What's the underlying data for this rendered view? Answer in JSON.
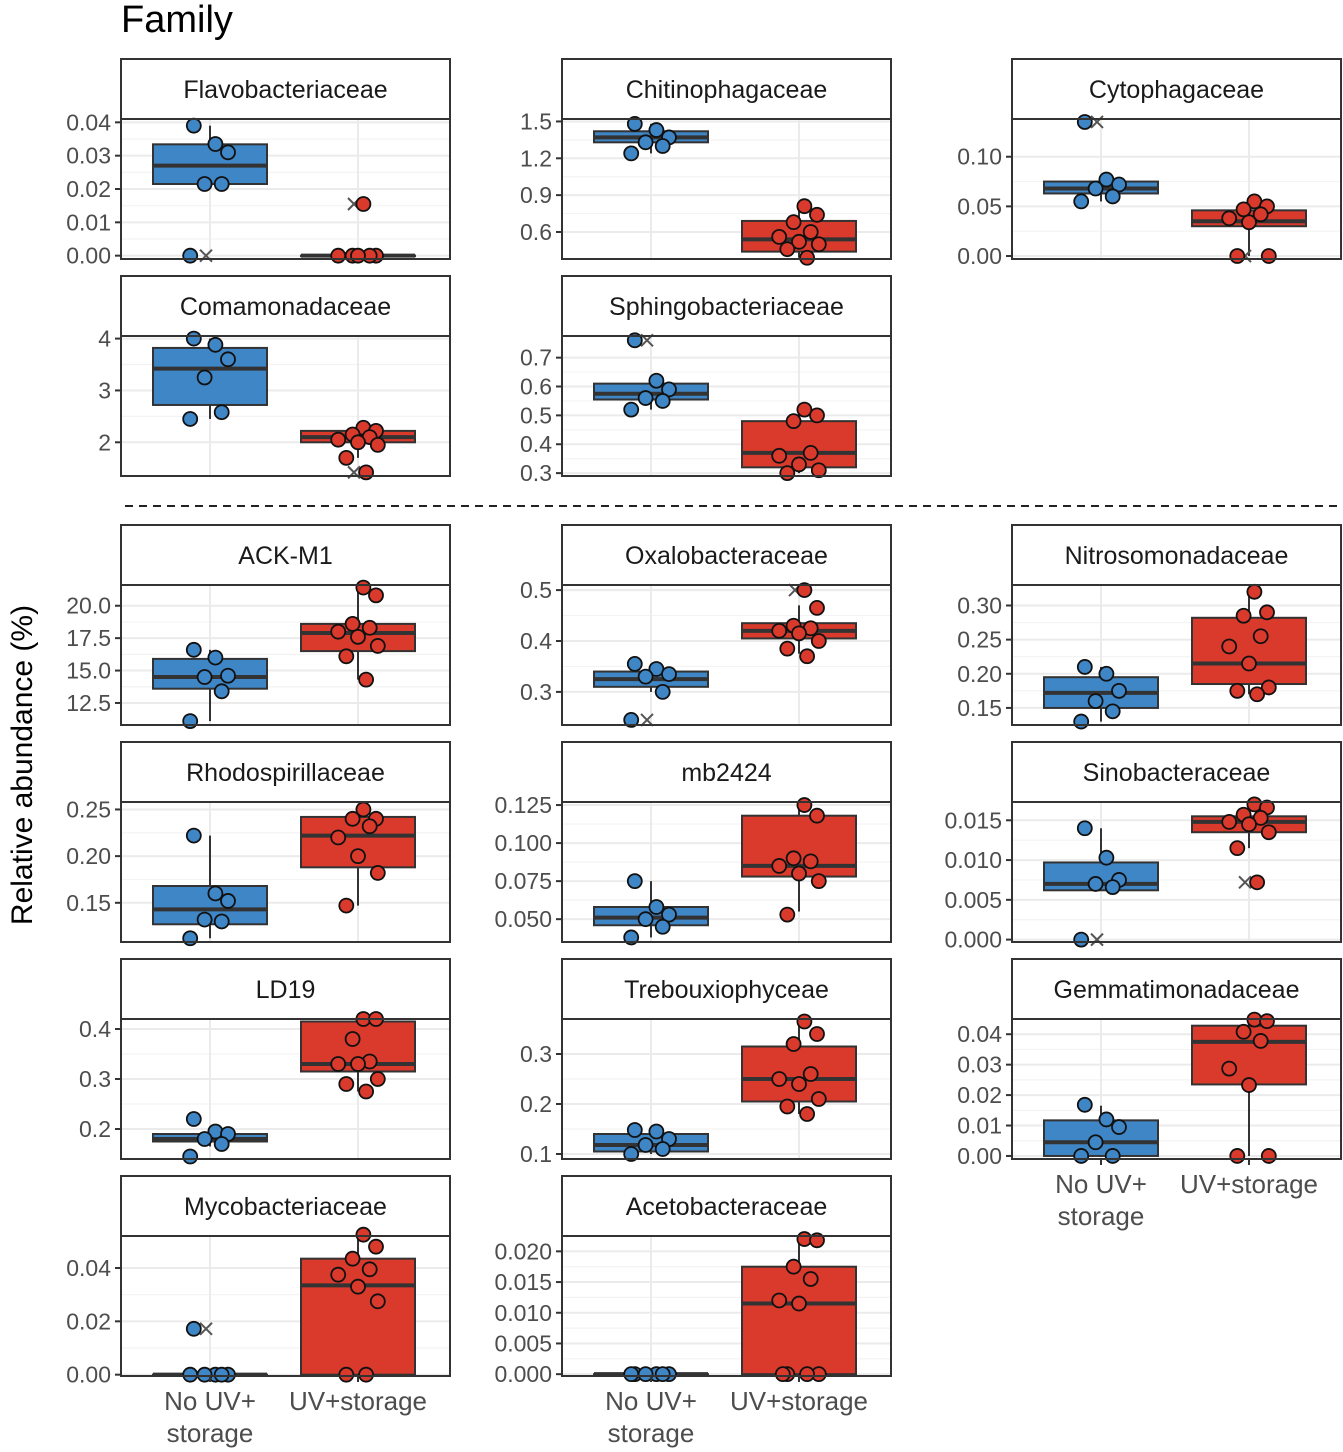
{
  "title": "Family",
  "ylabel": "Relative abundance (%)",
  "categories": [
    "No UV+\nstorage",
    "UV+storage"
  ],
  "colors": {
    "no_uv": "#3f86c6",
    "uv": "#d93a2c",
    "strip_bg": "#ffffff",
    "panel_border": "#333333",
    "grid": "#ebebeb",
    "median": "#333333"
  },
  "chart_data": [
    {
      "type": "box",
      "title": "Flavobacteriaceae",
      "ylim": [
        -0.001,
        0.041
      ],
      "yticks": [
        0,
        0.01,
        0.02,
        0.03,
        0.04
      ],
      "ytick_labels": [
        "0.00",
        "0.01",
        "0.02",
        "0.03",
        "0.04"
      ],
      "groups": [
        {
          "name": "No UV+ storage",
          "box": {
            "q1": 0.0215,
            "median": 0.027,
            "q3": 0.0334,
            "whisker_low": 0.0215,
            "whisker_high": 0.039
          },
          "points": [
            0.039,
            0.0335,
            0.031,
            0.0215,
            0.0215,
            0.0
          ],
          "outliers": [
            0.0
          ]
        },
        {
          "name": "UV+storage",
          "box": {
            "q1": 0.0,
            "median": 0.0,
            "q3": 0.0,
            "whisker_low": 0.0,
            "whisker_high": 0.0
          },
          "points": [
            0.0155,
            0.0,
            0.0,
            0.0,
            0.0,
            0.0
          ],
          "outliers": [
            0.0155
          ]
        }
      ]
    },
    {
      "type": "box",
      "title": "Chitinophagaceae",
      "ylim": [
        0.38,
        1.52
      ],
      "yticks": [
        0.6,
        0.9,
        1.2,
        1.5
      ],
      "ytick_labels": [
        "0.6",
        "0.9",
        "1.2",
        "1.5"
      ],
      "groups": [
        {
          "name": "No UV+ storage",
          "box": {
            "q1": 1.33,
            "median": 1.37,
            "q3": 1.42,
            "whisker_low": 1.24,
            "whisker_high": 1.48
          },
          "points": [
            1.48,
            1.43,
            1.37,
            1.33,
            1.3,
            1.24
          ],
          "outliers": []
        },
        {
          "name": "UV+storage",
          "box": {
            "q1": 0.44,
            "median": 0.54,
            "q3": 0.69,
            "whisker_low": 0.39,
            "whisker_high": 0.81
          },
          "points": [
            0.81,
            0.74,
            0.68,
            0.6,
            0.56,
            0.52,
            0.5,
            0.46,
            0.39
          ],
          "outliers": []
        }
      ]
    },
    {
      "type": "box",
      "title": "Cytophagaceae",
      "ylim": [
        -0.003,
        0.138
      ],
      "yticks": [
        0,
        0.05,
        0.1
      ],
      "ytick_labels": [
        "0.00",
        "0.05",
        "0.10"
      ],
      "groups": [
        {
          "name": "No UV+ storage",
          "box": {
            "q1": 0.063,
            "median": 0.068,
            "q3": 0.075,
            "whisker_low": 0.055,
            "whisker_high": 0.077
          },
          "points": [
            0.135,
            0.077,
            0.072,
            0.068,
            0.06,
            0.055
          ],
          "outliers": [
            0.135
          ]
        },
        {
          "name": "UV+storage",
          "box": {
            "q1": 0.03,
            "median": 0.035,
            "q3": 0.046,
            "whisker_low": 0.0,
            "whisker_high": 0.055
          },
          "points": [
            0.055,
            0.05,
            0.047,
            0.042,
            0.038,
            0.034,
            0.0,
            0.0
          ],
          "outliers": [
            0.0
          ]
        }
      ]
    },
    {
      "type": "box",
      "title": "Comamonadaceae",
      "ylim": [
        1.35,
        4.05
      ],
      "yticks": [
        2,
        3,
        4
      ],
      "ytick_labels": [
        "2",
        "3",
        "4"
      ],
      "groups": [
        {
          "name": "No UV+ storage",
          "box": {
            "q1": 2.72,
            "median": 3.42,
            "q3": 3.82,
            "whisker_low": 2.45,
            "whisker_high": 4.0
          },
          "points": [
            4.0,
            3.88,
            3.6,
            3.25,
            2.58,
            2.45
          ],
          "outliers": []
        },
        {
          "name": "UV+storage",
          "box": {
            "q1": 2.0,
            "median": 2.1,
            "q3": 2.22,
            "whisker_low": 1.7,
            "whisker_high": 2.28
          },
          "points": [
            2.28,
            2.22,
            2.15,
            2.1,
            2.05,
            2.0,
            1.95,
            1.7,
            1.42
          ],
          "outliers": [
            1.42
          ]
        }
      ]
    },
    {
      "type": "box",
      "title": "Sphingobacteriaceae",
      "ylim": [
        0.29,
        0.775
      ],
      "yticks": [
        0.3,
        0.4,
        0.5,
        0.6,
        0.7
      ],
      "ytick_labels": [
        "0.3",
        "0.4",
        "0.5",
        "0.6",
        "0.7"
      ],
      "groups": [
        {
          "name": "No UV+ storage",
          "box": {
            "q1": 0.555,
            "median": 0.575,
            "q3": 0.61,
            "whisker_low": 0.52,
            "whisker_high": 0.62
          },
          "points": [
            0.76,
            0.62,
            0.59,
            0.56,
            0.55,
            0.52
          ],
          "outliers": [
            0.76
          ]
        },
        {
          "name": "UV+storage",
          "box": {
            "q1": 0.32,
            "median": 0.37,
            "q3": 0.48,
            "whisker_low": 0.3,
            "whisker_high": 0.52
          },
          "points": [
            0.52,
            0.5,
            0.48,
            0.37,
            0.36,
            0.33,
            0.31,
            0.3
          ],
          "outliers": []
        }
      ]
    },
    {
      "type": "box",
      "title": "ACK-M1",
      "ylim": [
        10.8,
        21.6
      ],
      "yticks": [
        12.5,
        15.0,
        17.5,
        20.0
      ],
      "ytick_labels": [
        "12.5",
        "15.0",
        "17.5",
        "20.0"
      ],
      "groups": [
        {
          "name": "No UV+ storage",
          "box": {
            "q1": 13.6,
            "median": 14.5,
            "q3": 15.9,
            "whisker_low": 11.1,
            "whisker_high": 16.6
          },
          "points": [
            16.6,
            16.0,
            14.6,
            14.5,
            13.4,
            11.1
          ],
          "outliers": []
        },
        {
          "name": "UV+storage",
          "box": {
            "q1": 16.5,
            "median": 17.9,
            "q3": 18.6,
            "whisker_low": 14.3,
            "whisker_high": 21.4
          },
          "points": [
            21.4,
            20.8,
            18.6,
            18.3,
            18.0,
            17.6,
            16.9,
            16.1,
            14.3
          ],
          "outliers": []
        }
      ]
    },
    {
      "type": "box",
      "title": "Oxalobacteraceae",
      "ylim": [
        0.235,
        0.51
      ],
      "yticks": [
        0.3,
        0.4,
        0.5
      ],
      "ytick_labels": [
        "0.3",
        "0.4",
        "0.5"
      ],
      "groups": [
        {
          "name": "No UV+ storage",
          "box": {
            "q1": 0.31,
            "median": 0.325,
            "q3": 0.34,
            "whisker_low": 0.3,
            "whisker_high": 0.355
          },
          "points": [
            0.355,
            0.345,
            0.335,
            0.33,
            0.3,
            0.245
          ],
          "outliers": [
            0.245
          ]
        },
        {
          "name": "UV+storage",
          "box": {
            "q1": 0.405,
            "median": 0.42,
            "q3": 0.435,
            "whisker_low": 0.375,
            "whisker_high": 0.47
          },
          "points": [
            0.5,
            0.465,
            0.43,
            0.425,
            0.42,
            0.415,
            0.4,
            0.385,
            0.37
          ],
          "outliers": [
            0.5
          ]
        }
      ]
    },
    {
      "type": "box",
      "title": "Nitrosomonadaceae",
      "ylim": [
        0.125,
        0.33
      ],
      "yticks": [
        0.15,
        0.2,
        0.25,
        0.3
      ],
      "ytick_labels": [
        "0.15",
        "0.20",
        "0.25",
        "0.30"
      ],
      "groups": [
        {
          "name": "No UV+ storage",
          "box": {
            "q1": 0.15,
            "median": 0.172,
            "q3": 0.195,
            "whisker_low": 0.13,
            "whisker_high": 0.21
          },
          "points": [
            0.21,
            0.2,
            0.175,
            0.16,
            0.145,
            0.13
          ],
          "outliers": []
        },
        {
          "name": "UV+storage",
          "box": {
            "q1": 0.185,
            "median": 0.215,
            "q3": 0.282,
            "whisker_low": 0.17,
            "whisker_high": 0.32
          },
          "points": [
            0.32,
            0.29,
            0.285,
            0.255,
            0.24,
            0.215,
            0.18,
            0.175,
            0.17
          ],
          "outliers": []
        }
      ]
    },
    {
      "type": "box",
      "title": "Rhodospirillaceae",
      "ylim": [
        0.108,
        0.258
      ],
      "yticks": [
        0.15,
        0.2,
        0.25
      ],
      "ytick_labels": [
        "0.15",
        "0.20",
        "0.25"
      ],
      "groups": [
        {
          "name": "No UV+ storage",
          "box": {
            "q1": 0.127,
            "median": 0.143,
            "q3": 0.168,
            "whisker_low": 0.112,
            "whisker_high": 0.222
          },
          "points": [
            0.222,
            0.16,
            0.152,
            0.132,
            0.13,
            0.112
          ],
          "outliers": []
        },
        {
          "name": "UV+storage",
          "box": {
            "q1": 0.188,
            "median": 0.222,
            "q3": 0.242,
            "whisker_low": 0.147,
            "whisker_high": 0.25
          },
          "points": [
            0.25,
            0.24,
            0.24,
            0.232,
            0.22,
            0.2,
            0.182,
            0.147
          ],
          "outliers": []
        }
      ]
    },
    {
      "type": "box",
      "title": "mb2424",
      "ylim": [
        0.035,
        0.127
      ],
      "yticks": [
        0.05,
        0.075,
        0.1,
        0.125
      ],
      "ytick_labels": [
        "0.050",
        "0.075",
        "0.100",
        "0.125"
      ],
      "groups": [
        {
          "name": "No UV+ storage",
          "box": {
            "q1": 0.046,
            "median": 0.051,
            "q3": 0.058,
            "whisker_low": 0.038,
            "whisker_high": 0.075
          },
          "points": [
            0.075,
            0.058,
            0.053,
            0.05,
            0.045,
            0.038
          ],
          "outliers": []
        },
        {
          "name": "UV+storage",
          "box": {
            "q1": 0.078,
            "median": 0.085,
            "q3": 0.118,
            "whisker_low": 0.055,
            "whisker_high": 0.125
          },
          "points": [
            0.125,
            0.118,
            0.09,
            0.088,
            0.085,
            0.08,
            0.075,
            0.053
          ],
          "outliers": []
        }
      ]
    },
    {
      "type": "box",
      "title": "Sinobacteraceae",
      "ylim": [
        -0.0003,
        0.0173
      ],
      "yticks": [
        0,
        0.005,
        0.01,
        0.015
      ],
      "ytick_labels": [
        "0.000",
        "0.005",
        "0.010",
        "0.015"
      ],
      "groups": [
        {
          "name": "No UV+ storage",
          "box": {
            "q1": 0.0062,
            "median": 0.007,
            "q3": 0.0097,
            "whisker_low": 0.0062,
            "whisker_high": 0.014
          },
          "points": [
            0.014,
            0.0103,
            0.0075,
            0.007,
            0.0066,
            0.0
          ],
          "outliers": [
            0.0
          ]
        },
        {
          "name": "UV+storage",
          "box": {
            "q1": 0.0135,
            "median": 0.0148,
            "q3": 0.0155,
            "whisker_low": 0.0115,
            "whisker_high": 0.017
          },
          "points": [
            0.017,
            0.0166,
            0.0157,
            0.0153,
            0.0148,
            0.0145,
            0.0135,
            0.0115,
            0.0072
          ],
          "outliers": [
            0.0072
          ]
        }
      ]
    },
    {
      "type": "box",
      "title": "LD19",
      "ylim": [
        0.14,
        0.42
      ],
      "yticks": [
        0.2,
        0.3,
        0.4
      ],
      "ytick_labels": [
        "0.2",
        "0.3",
        "0.4"
      ],
      "groups": [
        {
          "name": "No UV+ storage",
          "box": {
            "q1": 0.175,
            "median": 0.18,
            "q3": 0.19,
            "whisker_low": 0.165,
            "whisker_high": 0.205
          },
          "points": [
            0.22,
            0.195,
            0.19,
            0.18,
            0.17,
            0.145
          ],
          "outliers": []
        },
        {
          "name": "UV+storage",
          "box": {
            "q1": 0.315,
            "median": 0.33,
            "q3": 0.415,
            "whisker_low": 0.275,
            "whisker_high": 0.42
          },
          "points": [
            0.42,
            0.42,
            0.38,
            0.335,
            0.33,
            0.33,
            0.3,
            0.29,
            0.275
          ],
          "outliers": []
        }
      ]
    },
    {
      "type": "box",
      "title": "Trebouxiophyceae",
      "ylim": [
        0.09,
        0.37
      ],
      "yticks": [
        0.1,
        0.2,
        0.3
      ],
      "ytick_labels": [
        "0.1",
        "0.2",
        "0.3"
      ],
      "groups": [
        {
          "name": "No UV+ storage",
          "box": {
            "q1": 0.105,
            "median": 0.118,
            "q3": 0.14,
            "whisker_low": 0.1,
            "whisker_high": 0.15
          },
          "points": [
            0.148,
            0.145,
            0.13,
            0.118,
            0.11,
            0.1
          ],
          "outliers": []
        },
        {
          "name": "UV+storage",
          "box": {
            "q1": 0.205,
            "median": 0.25,
            "q3": 0.315,
            "whisker_low": 0.18,
            "whisker_high": 0.365
          },
          "points": [
            0.365,
            0.34,
            0.32,
            0.26,
            0.25,
            0.24,
            0.21,
            0.195,
            0.18
          ],
          "outliers": []
        }
      ]
    },
    {
      "type": "box",
      "title": "Gemmatimonadaceae",
      "ylim": [
        -0.001,
        0.045
      ],
      "yticks": [
        0,
        0.01,
        0.02,
        0.03,
        0.04
      ],
      "ytick_labels": [
        "0.00",
        "0.01",
        "0.02",
        "0.03",
        "0.04"
      ],
      "groups": [
        {
          "name": "No UV+ storage",
          "box": {
            "q1": 0.0,
            "median": 0.0045,
            "q3": 0.0117,
            "whisker_low": 0.0,
            "whisker_high": 0.0165
          },
          "points": [
            0.0168,
            0.012,
            0.0095,
            0.0045,
            0.0,
            0.0
          ],
          "outliers": []
        },
        {
          "name": "UV+storage",
          "box": {
            "q1": 0.0235,
            "median": 0.0375,
            "q3": 0.0428,
            "whisker_low": 0.0,
            "whisker_high": 0.0448
          },
          "points": [
            0.0448,
            0.0443,
            0.0408,
            0.0378,
            0.0287,
            0.0233,
            0.0,
            0.0
          ],
          "outliers": []
        }
      ]
    },
    {
      "type": "box",
      "title": "Mycobacteriaceae",
      "ylim": [
        -0.0005,
        0.052
      ],
      "yticks": [
        0,
        0.02,
        0.04
      ],
      "ytick_labels": [
        "0.00",
        "0.02",
        "0.04"
      ],
      "groups": [
        {
          "name": "No UV+ storage",
          "box": {
            "q1": 0.0,
            "median": 0.0,
            "q3": 0.0,
            "whisker_low": 0.0,
            "whisker_high": 0.0
          },
          "points": [
            0.0172,
            0.0,
            0.0,
            0.0,
            0.0,
            0.0
          ],
          "outliers": [
            0.0172
          ]
        },
        {
          "name": "UV+storage",
          "box": {
            "q1": 0.0,
            "median": 0.0335,
            "q3": 0.0435,
            "whisker_low": 0.0,
            "whisker_high": 0.0525
          },
          "points": [
            0.0525,
            0.048,
            0.0435,
            0.0395,
            0.0375,
            0.033,
            0.0275,
            0.0,
            0.0
          ],
          "outliers": []
        }
      ]
    },
    {
      "type": "box",
      "title": "Acetobacteraceae",
      "ylim": [
        -0.0003,
        0.0225
      ],
      "yticks": [
        0,
        0.005,
        0.01,
        0.015,
        0.02
      ],
      "ytick_labels": [
        "0.000",
        "0.005",
        "0.010",
        "0.015",
        "0.020"
      ],
      "groups": [
        {
          "name": "No UV+ storage",
          "box": {
            "q1": 0.0,
            "median": 0.0,
            "q3": 0.0,
            "whisker_low": 0.0,
            "whisker_high": 0.0
          },
          "points": [
            0.0,
            0.0,
            0.0,
            0.0,
            0.0,
            0.0
          ],
          "outliers": []
        },
        {
          "name": "UV+storage",
          "box": {
            "q1": 0.0,
            "median": 0.0115,
            "q3": 0.0175,
            "whisker_low": 0.0,
            "whisker_high": 0.022
          },
          "points": [
            0.022,
            0.0218,
            0.0175,
            0.0155,
            0.012,
            0.0115,
            0.0,
            0.0,
            0.0,
            0.0
          ],
          "outliers": []
        }
      ]
    }
  ]
}
